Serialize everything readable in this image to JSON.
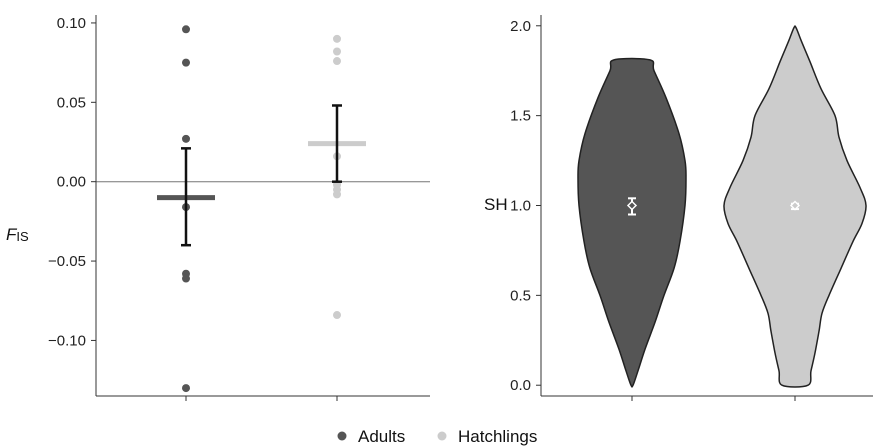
{
  "legend": {
    "items": [
      {
        "label": "Adults",
        "color": "#555555"
      },
      {
        "label": "Hatchlings",
        "color": "#cccccc"
      }
    ]
  },
  "chart_data": [
    {
      "type": "scatter",
      "ylabel": {
        "main": "F",
        "sub": "IS"
      },
      "ylim": [
        -0.135,
        0.105
      ],
      "yticks": [
        0.1,
        0.05,
        0.0,
        -0.05,
        -0.1
      ],
      "ytick_labels": [
        "0.10",
        "0.05",
        "0.00",
        "−0.05",
        "−0.10"
      ],
      "reference_line": 0.0,
      "series": [
        {
          "name": "Adults",
          "color": "#555555",
          "points": [
            0.096,
            0.075,
            0.027,
            -0.016,
            -0.058,
            -0.061,
            -0.13
          ],
          "mean": -0.01,
          "ci": [
            -0.04,
            0.021
          ]
        },
        {
          "name": "Hatchlings",
          "color": "#cccccc",
          "points": [
            0.09,
            0.082,
            0.076,
            0.016,
            -0.002,
            -0.005,
            -0.008,
            -0.084
          ],
          "mean": 0.024,
          "ci": [
            0.0,
            0.048
          ]
        }
      ]
    },
    {
      "type": "violin",
      "ylabel": "SH",
      "ylim": [
        -0.06,
        2.06
      ],
      "yticks": [
        2.0,
        1.5,
        1.0,
        0.5,
        0.0
      ],
      "ytick_labels": [
        "2.0",
        "1.5",
        "1.0",
        "0.5",
        "0.0"
      ],
      "series": [
        {
          "name": "Adults",
          "color": "#555555",
          "range": [
            0.0,
            1.81
          ],
          "mean": 1.0,
          "ci": [
            0.95,
            1.04
          ]
        },
        {
          "name": "Hatchlings",
          "color": "#cccccc",
          "range": [
            0.0,
            1.99
          ],
          "mean": 1.0,
          "ci": [
            0.98,
            1.01
          ]
        }
      ]
    }
  ]
}
